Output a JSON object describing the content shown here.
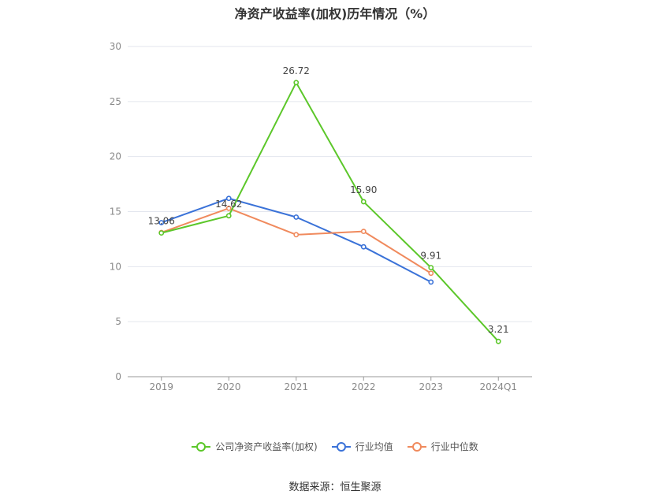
{
  "title": "净资产收益率(加权)历年情况（%）",
  "source": "数据来源：恒生聚源",
  "chart_data": {
    "type": "line",
    "categories": [
      "2019",
      "2020",
      "2021",
      "2022",
      "2023",
      "2024Q1"
    ],
    "ylim": [
      0,
      30
    ],
    "yticks": [
      0,
      5,
      10,
      15,
      20,
      25,
      30
    ],
    "grid": true,
    "legend_position": "bottom",
    "series": [
      {
        "name": "公司净资产收益率(加权)",
        "color": "#5cc72a",
        "values": [
          13.06,
          14.62,
          26.72,
          15.9,
          9.91,
          3.21
        ],
        "labels": [
          "13.06",
          "14.62",
          "26.72",
          "15.90",
          "9.91",
          "3.21"
        ]
      },
      {
        "name": "行业均值",
        "color": "#3a72d8",
        "values": [
          14.0,
          16.2,
          14.5,
          11.8,
          8.6,
          null
        ]
      },
      {
        "name": "行业中位数",
        "color": "#f08a5d",
        "values": [
          13.1,
          15.3,
          12.9,
          13.2,
          9.4,
          null
        ]
      }
    ]
  }
}
